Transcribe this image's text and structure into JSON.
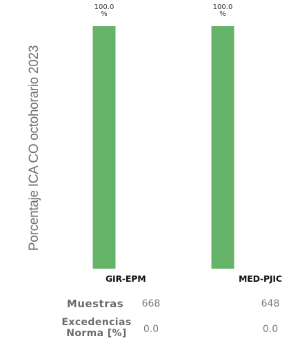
{
  "chart_data": {
    "type": "bar",
    "ylabel": "Porcentaje ICA CO octohorario 2023",
    "xlabel": "",
    "categories": [
      "GIR-EPM",
      "MED-PJIC"
    ],
    "values": [
      100.0,
      100.0
    ],
    "value_labels": [
      "100.0\n%",
      "100.0\n%"
    ],
    "ylim": [
      0,
      100
    ],
    "grid": false,
    "colors": {
      "bar": "#66b36a"
    }
  },
  "table": {
    "rows": [
      {
        "label": "Muestras",
        "values": [
          "668",
          "648"
        ]
      },
      {
        "label": "Excedencias\nNorma [%]",
        "values": [
          "0.0",
          "0.0"
        ]
      }
    ]
  }
}
